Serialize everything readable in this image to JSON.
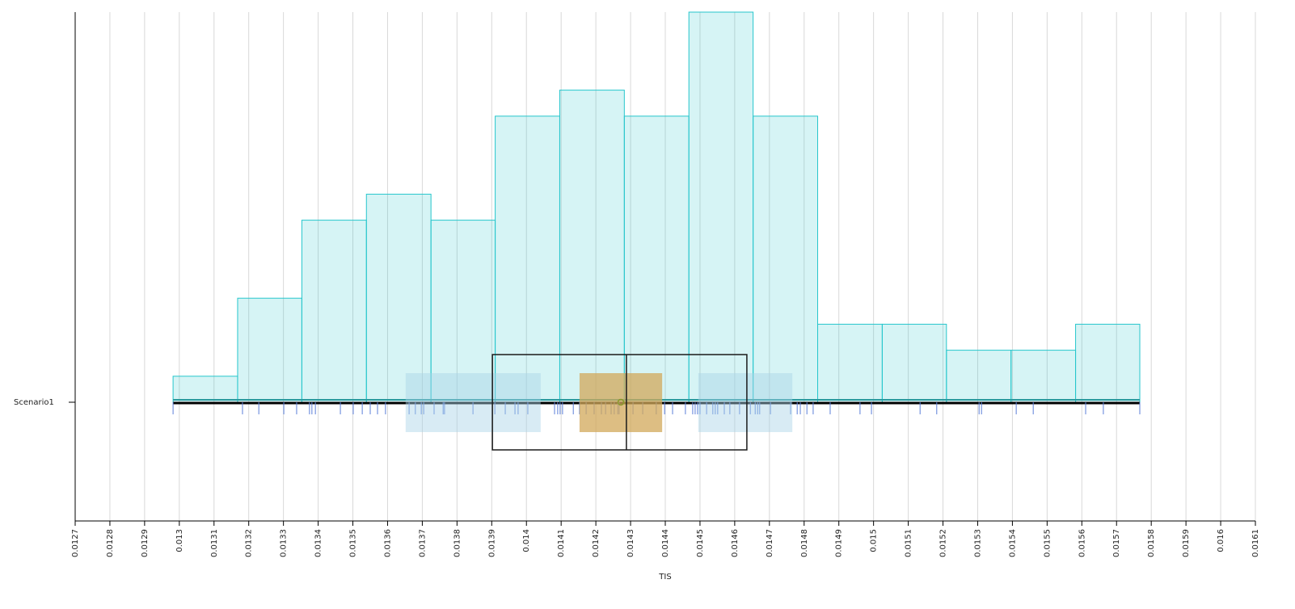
{
  "chart_data": {
    "type": "histogram",
    "xlabel": "TIS",
    "categories": [
      "Scenario1"
    ],
    "bins": [
      0.012982,
      0.013168,
      0.013353,
      0.013539,
      0.013725,
      0.01391,
      0.014096,
      0.014282,
      0.014468,
      0.014653,
      0.014839,
      0.015025,
      0.01521,
      0.015396,
      0.015582,
      0.015767
    ],
    "counts": [
      1,
      4,
      7,
      8,
      7,
      11,
      12,
      11,
      15,
      11,
      3,
      3,
      2,
      2,
      3
    ],
    "color": "#26c6cc",
    "box": {
      "min": 0.012982,
      "q1": 0.013902,
      "median": 0.014288,
      "q3": 0.014635,
      "max": 0.015767,
      "mean": 0.014272
    },
    "q1_ci": [
      0.013652,
      0.014041
    ],
    "median_ci": [
      0.014153,
      0.014391
    ],
    "q3_ci": [
      0.014495,
      0.014766
    ],
    "ci_color": "#a9d3e6",
    "median_ci_color": "#d2a85a",
    "rug": [
      0.012982,
      0.013182,
      0.013229,
      0.013301,
      0.013338,
      0.013375,
      0.013382,
      0.013392,
      0.013464,
      0.013501,
      0.013527,
      0.01355,
      0.013571,
      0.013594,
      0.013662,
      0.01368,
      0.013697,
      0.013704,
      0.013734,
      0.01376,
      0.013764,
      0.013846,
      0.013909,
      0.013939,
      0.013967,
      0.013976,
      0.014004,
      0.014081,
      0.01409,
      0.014097,
      0.014104,
      0.014135,
      0.014153,
      0.014172,
      0.014195,
      0.014216,
      0.014228,
      0.014244,
      0.014253,
      0.014263,
      0.014267,
      0.014288,
      0.014307,
      0.014335,
      0.014374,
      0.014398,
      0.014421,
      0.014458,
      0.014479,
      0.014486,
      0.014493,
      0.0145,
      0.014519,
      0.014537,
      0.014544,
      0.014551,
      0.01457,
      0.014586,
      0.014614,
      0.014645,
      0.014659,
      0.014666,
      0.014672,
      0.014703,
      0.014761,
      0.01478,
      0.014789,
      0.014808,
      0.014826,
      0.014875,
      0.014961,
      0.014994,
      0.015134,
      0.015182,
      0.015304,
      0.015311,
      0.015411,
      0.01546,
      0.015611,
      0.015662,
      0.015767
    ],
    "rug_color": "#5b7fd9",
    "xlim": [
      0.0127,
      0.0161
    ],
    "xticks": [
      0.0127,
      0.0128,
      0.0129,
      0.013,
      0.0131,
      0.0132,
      0.0133,
      0.0134,
      0.0135,
      0.0136,
      0.0137,
      0.0138,
      0.0139,
      0.014,
      0.0141,
      0.0142,
      0.0143,
      0.0144,
      0.0145,
      0.0146,
      0.0147,
      0.0148,
      0.0149,
      0.015,
      0.0151,
      0.0152,
      0.0153,
      0.0154,
      0.0155,
      0.0156,
      0.0157,
      0.0158,
      0.0159,
      0.016,
      0.0161
    ],
    "ylim": [
      0,
      15
    ],
    "grid": true
  }
}
